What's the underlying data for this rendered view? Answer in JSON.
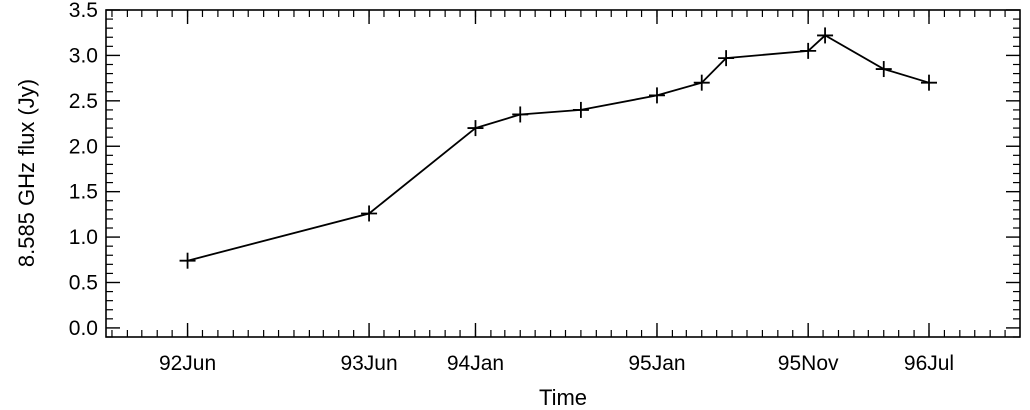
{
  "chart_data": {
    "type": "line",
    "xlabel": "Time",
    "ylabel": "8.585 GHz flux (Jy)",
    "x_tick_labels": [
      "92Jun",
      "93Jun",
      "94Jan",
      "95Jan",
      "95Nov",
      "96Jul"
    ],
    "x_tick_dates": [
      "1992-06-01",
      "1993-06-01",
      "1994-01-01",
      "1995-01-01",
      "1995-11-01",
      "1996-07-01"
    ],
    "xlim": [
      "1991-12-20",
      "1996-12-31"
    ],
    "ylim": [
      -0.1,
      3.5
    ],
    "y_ticks": [
      0.0,
      0.5,
      1.0,
      1.5,
      2.0,
      2.5,
      3.0,
      3.5
    ],
    "y_tick_labels": [
      "0.0",
      "0.5",
      "1.0",
      "1.5",
      "2.0",
      "2.5",
      "3.0",
      "3.5"
    ],
    "marker": "plus",
    "line_color": "#000000",
    "grid": false,
    "series": [
      {
        "x": [
          "1992-06-01",
          "1993-06-01",
          "1994-01-01",
          "1994-04-01",
          "1994-08-01",
          "1995-01-01",
          "1995-04-01",
          "1995-05-20",
          "1995-11-01",
          "1995-12-05",
          "1996-04-01",
          "1996-07-01"
        ],
        "y": [
          0.74,
          1.26,
          2.2,
          2.35,
          2.4,
          2.56,
          2.7,
          2.97,
          3.05,
          3.22,
          2.85,
          2.7
        ]
      }
    ]
  }
}
